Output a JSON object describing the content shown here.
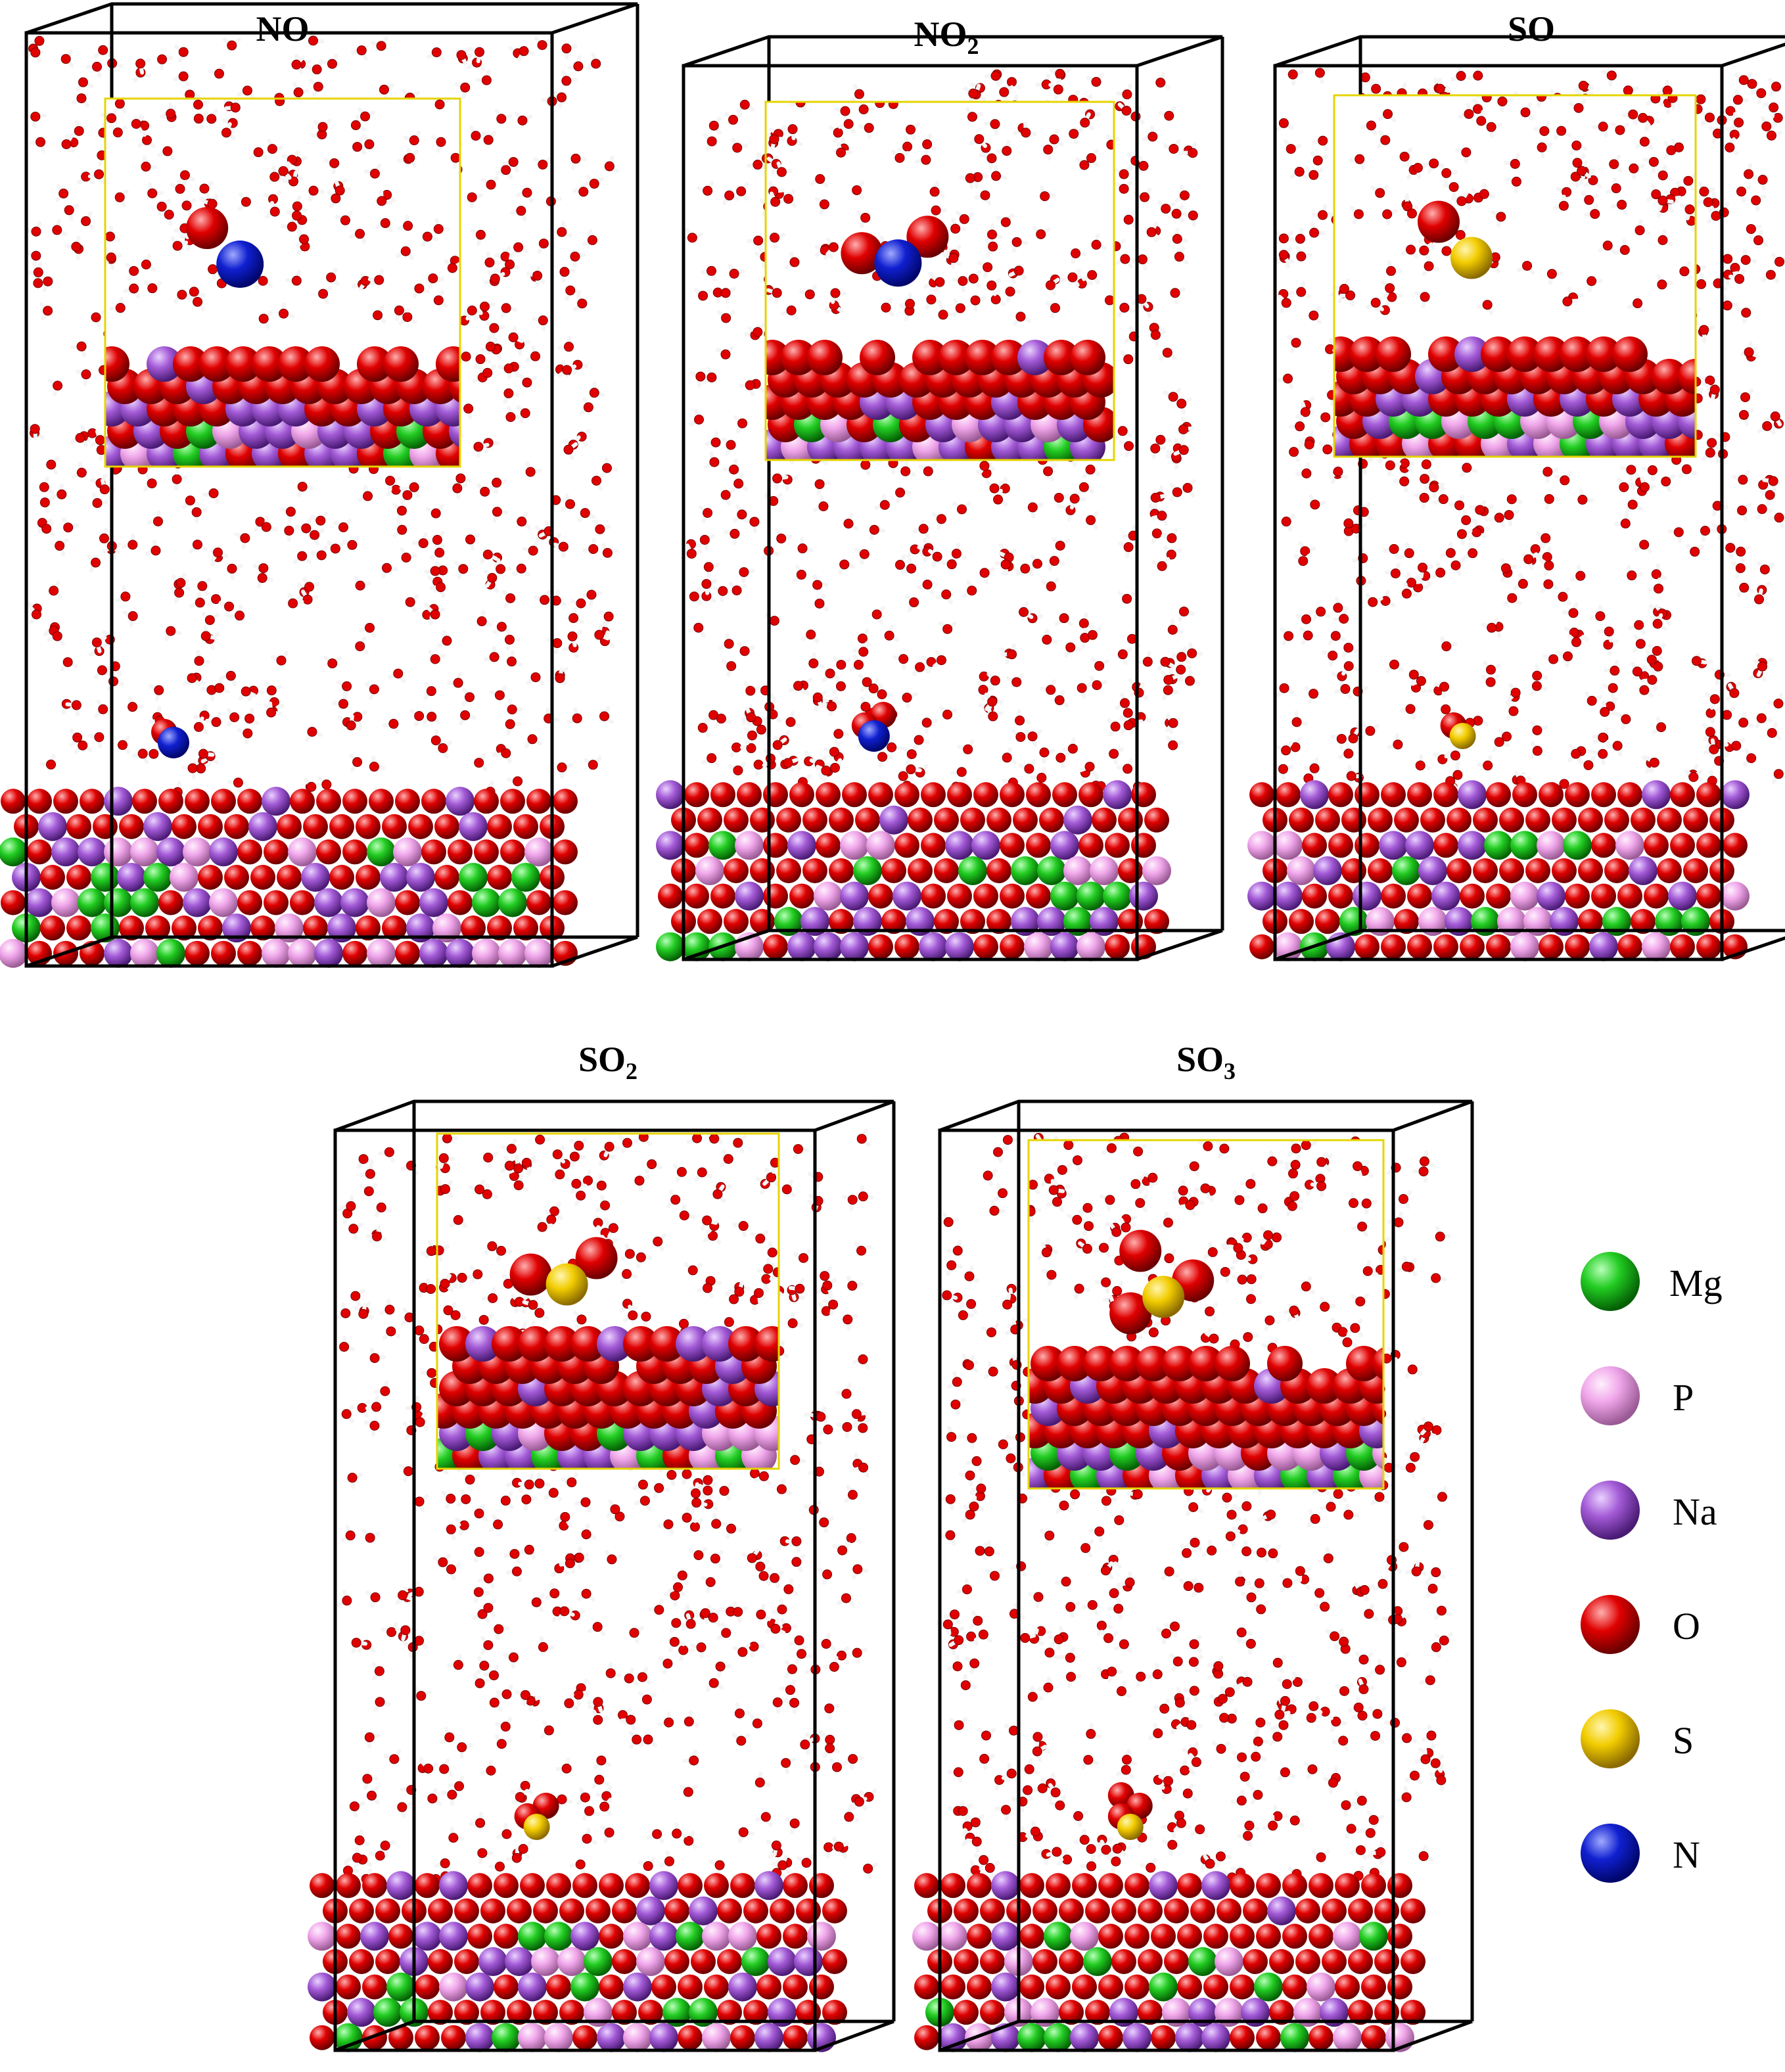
{
  "panels": [
    {
      "id": "no",
      "title": "NO",
      "sub": "",
      "adsorbate": [
        "N",
        "O"
      ]
    },
    {
      "id": "no2",
      "title": "NO",
      "sub": "2",
      "adsorbate": [
        "N",
        "O",
        "O"
      ]
    },
    {
      "id": "so",
      "title": "SO",
      "sub": "",
      "adsorbate": [
        "S",
        "O"
      ]
    },
    {
      "id": "so2",
      "title": "SO",
      "sub": "2",
      "adsorbate": [
        "S",
        "O",
        "O"
      ]
    },
    {
      "id": "so3",
      "title": "SO",
      "sub": "3",
      "adsorbate": [
        "S",
        "O",
        "O",
        "O"
      ]
    }
  ],
  "legend": [
    {
      "label": "Mg",
      "color": "#1fc21f"
    },
    {
      "label": "P",
      "color": "#f0a6ea"
    },
    {
      "label": "Na",
      "color": "#a35ad6"
    },
    {
      "label": "O",
      "color": "#e00000"
    },
    {
      "label": "S",
      "color": "#f2cc00"
    },
    {
      "label": "N",
      "color": "#1020d0"
    }
  ],
  "colors": {
    "box_edge": "#000000",
    "inset_border": "#e6d400",
    "water_oxygen": "#e00000",
    "water_hydrogen": "#f4f4f4"
  }
}
